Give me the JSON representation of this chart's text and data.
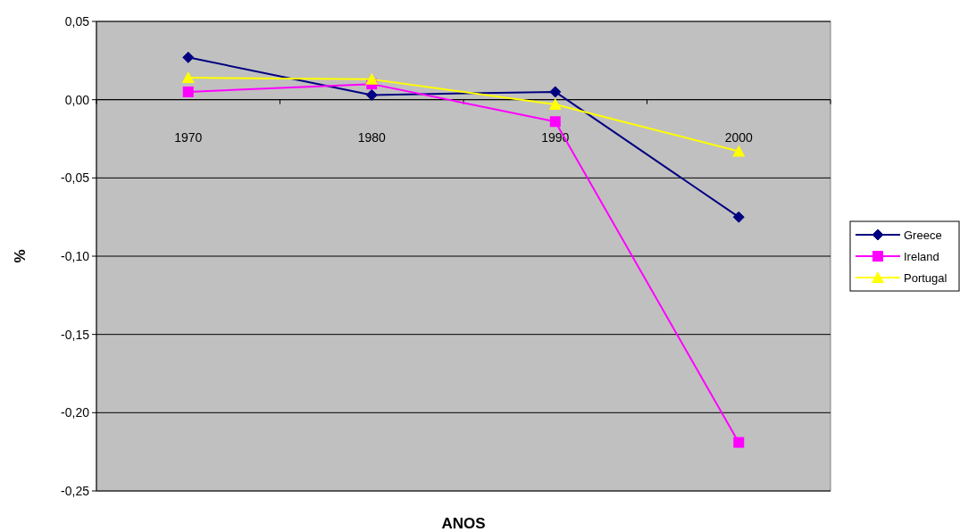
{
  "chart_data": {
    "type": "line",
    "xlabel": "ANOS",
    "ylabel": "%",
    "categories": [
      "1970",
      "1980",
      "1990",
      "2000"
    ],
    "series": [
      {
        "name": "Greece",
        "color": "#000080",
        "marker": "diamond",
        "values": [
          0.027,
          0.003,
          0.005,
          -0.075
        ]
      },
      {
        "name": "Ireland",
        "color": "#ff00ff",
        "marker": "square",
        "values": [
          0.005,
          0.01,
          -0.014,
          -0.219
        ]
      },
      {
        "name": "Portugal",
        "color": "#ffff00",
        "marker": "triangle",
        "values": [
          0.014,
          0.013,
          -0.003,
          -0.033
        ]
      }
    ],
    "ylim": [
      -0.25,
      0.05
    ],
    "yticks": [
      {
        "value": -0.25,
        "label": "-0,25"
      },
      {
        "value": -0.2,
        "label": "-0,20"
      },
      {
        "value": -0.15,
        "label": "-0,15"
      },
      {
        "value": -0.1,
        "label": "-0,10"
      },
      {
        "value": -0.05,
        "label": "-0,05"
      },
      {
        "value": 0,
        "label": "0,00"
      },
      {
        "value": 0.05,
        "label": "0,05"
      }
    ],
    "grid": "y",
    "legend": "right",
    "line_style": "solid"
  }
}
